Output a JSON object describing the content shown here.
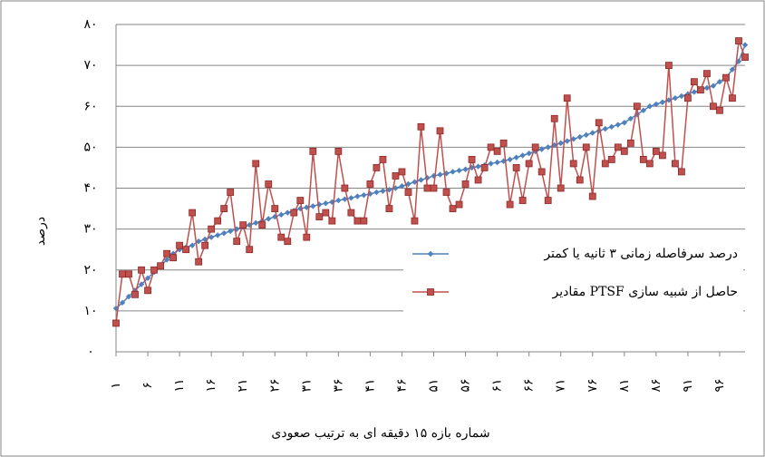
{
  "chart_data": {
    "type": "line",
    "y_label": "درصد",
    "x_label": "شماره بازه ۱۵ دقیقه ای به ترتیب صعودی",
    "categories": [
      "۱",
      null,
      null,
      null,
      null,
      "۶",
      null,
      null,
      null,
      null,
      "۱۱",
      null,
      null,
      null,
      null,
      "۱۶",
      null,
      null,
      null,
      null,
      "۲۱",
      null,
      null,
      null,
      null,
      "۲۶",
      null,
      null,
      null,
      null,
      "۳۱",
      null,
      null,
      null,
      null,
      "۳۶",
      null,
      null,
      null,
      null,
      "۴۱",
      null,
      null,
      null,
      null,
      "۴۶",
      null,
      null,
      null,
      null,
      "۵۱",
      null,
      null,
      null,
      null,
      "۵۶",
      null,
      null,
      null,
      null,
      "۶۱",
      null,
      null,
      null,
      null,
      "۶۶",
      null,
      null,
      null,
      null,
      "۷۱",
      null,
      null,
      null,
      null,
      "۷۶",
      null,
      null,
      null,
      null,
      "۸۱",
      null,
      null,
      null,
      null,
      "۸۶",
      null,
      null,
      null,
      null,
      "۹۱",
      null,
      null,
      null,
      null,
      "۹۶",
      null,
      null,
      null,
      null
    ],
    "series": [
      {
        "name": "درصد سرفاصله زمانی ۳ ثانیه یا کمتر",
        "color": "#4f81bd",
        "marker": "diamond",
        "values": [
          10.6,
          12,
          13.5,
          15,
          16.5,
          18,
          19.5,
          21,
          22.5,
          24,
          25,
          25.5,
          26,
          27,
          27.5,
          28,
          28.5,
          29,
          29.5,
          30,
          30.5,
          31,
          31.5,
          32,
          32.5,
          33,
          33.5,
          34,
          34.5,
          35,
          35.3,
          35.6,
          36,
          36.3,
          36.6,
          37,
          37.3,
          37.6,
          38,
          38.3,
          38.6,
          39,
          39.3,
          39.6,
          40,
          40.5,
          41,
          41.5,
          42,
          42.5,
          43,
          43.3,
          43.6,
          44,
          44.3,
          44.6,
          45,
          45.3,
          45.6,
          46,
          46.3,
          46.6,
          47,
          47.5,
          48,
          48.5,
          49,
          49.5,
          50,
          50.5,
          51,
          51.5,
          52,
          52.5,
          53,
          53.5,
          54,
          54.5,
          55,
          55.5,
          56,
          57,
          58,
          59,
          60,
          60.5,
          61,
          61.5,
          62,
          62.5,
          63,
          63.5,
          64,
          64.5,
          65,
          66,
          67,
          69,
          71,
          75
        ]
      },
      {
        "name": "مقادیر PTSF حاصل از شبیه سازی",
        "color": "#c0504d",
        "marker": "square",
        "values": [
          7,
          19,
          19,
          14,
          20,
          15,
          20,
          21,
          24,
          23,
          26,
          25,
          34,
          22,
          26,
          30,
          32,
          35,
          39,
          27,
          31,
          25,
          46,
          31,
          41,
          35,
          28,
          27,
          34,
          37,
          28,
          49,
          33,
          34,
          32,
          49,
          40,
          34,
          32,
          32,
          41,
          45,
          47,
          35,
          43,
          44,
          39,
          32,
          55,
          40,
          40,
          54,
          39,
          35,
          36,
          41,
          47,
          42,
          45,
          50,
          49,
          51,
          36,
          45,
          37,
          46,
          50,
          44,
          37,
          57,
          40,
          62,
          46,
          42,
          50,
          38,
          56,
          46,
          47,
          50,
          49,
          51,
          60,
          47,
          46,
          49,
          48,
          70,
          46,
          44,
          62,
          66,
          64,
          68,
          60,
          59,
          67,
          62,
          76,
          72
        ]
      }
    ],
    "ylim": [
      0,
      80
    ],
    "yticks": [
      {
        "value": 0,
        "label": "۰"
      },
      {
        "value": 10,
        "label": "۱۰"
      },
      {
        "value": 20,
        "label": "۲۰"
      },
      {
        "value": 30,
        "label": "۳۰"
      },
      {
        "value": 40,
        "label": "۴۰"
      },
      {
        "value": 50,
        "label": "۵۰"
      },
      {
        "value": 60,
        "label": "۶۰"
      },
      {
        "value": 70,
        "label": "۷۰"
      },
      {
        "value": 80,
        "label": "۸۰"
      }
    ],
    "grid": true,
    "legend": "right"
  }
}
